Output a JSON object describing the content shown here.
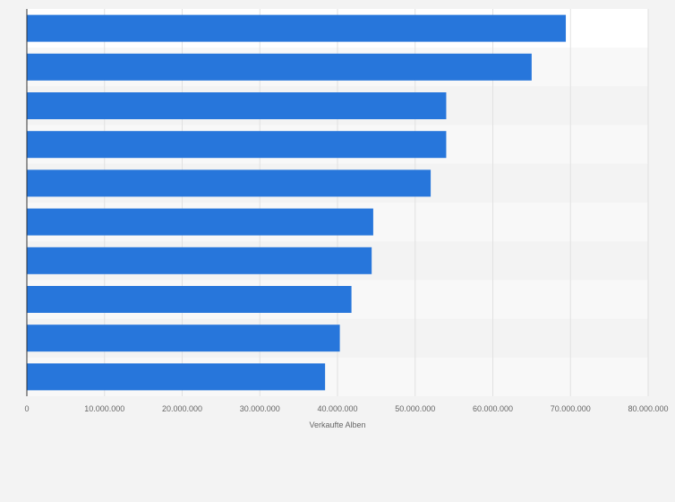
{
  "chart_data": {
    "type": "bar",
    "orientation": "horizontal",
    "categories": [
      "",
      "",
      "",
      "",
      "",
      "",
      "",
      "",
      "",
      ""
    ],
    "values": [
      69400000,
      65000000,
      54000000,
      54000000,
      52000000,
      44600000,
      44400000,
      41800000,
      40300000,
      38400000
    ],
    "xlim": [
      0,
      80000000
    ],
    "xticks": [
      0,
      10000000,
      20000000,
      30000000,
      40000000,
      50000000,
      60000000,
      70000000,
      80000000
    ],
    "xtick_labels": [
      "0",
      "10.000.000",
      "20.000.000",
      "30.000.000",
      "40.000.000",
      "50.000.000",
      "60.000.000",
      "70.000.000",
      "80.000.000"
    ],
    "xlabel": "Verkaufte Alben",
    "ylabel": "",
    "title": "",
    "grid": true,
    "legend": "none"
  },
  "colors": {
    "bar": "#2776db",
    "page_background": "#f3f3f3",
    "plot_band_light": "#f8f8f8",
    "plot_band_dark": "#f3f3f3",
    "plot_first_band": "#ffffff",
    "gridline": "#e1e1e1",
    "axis_line": "#333333",
    "text": "#666666"
  }
}
